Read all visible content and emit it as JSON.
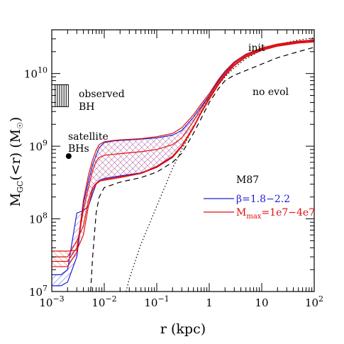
{
  "chart_data": {
    "type": "line",
    "xscale": "log",
    "yscale": "log",
    "xlim": [
      0.001,
      100
    ],
    "ylim": [
      10000000.0,
      40000000000.0
    ],
    "xlabel": "r (kpc)",
    "ylabel_main": "M",
    "ylabel_sub": "GC",
    "ylabel_rest": "(<r)  (M",
    "ylabel_unit_sub": "☉",
    "ylabel_close": ")",
    "x_ticks": [
      {
        "value": 0.001,
        "base": "10",
        "exp": "−3"
      },
      {
        "value": 0.01,
        "base": "10",
        "exp": "−2"
      },
      {
        "value": 0.1,
        "base": "10",
        "exp": "−1"
      },
      {
        "value": 1,
        "base": "1",
        "exp": ""
      },
      {
        "value": 10,
        "base": "10",
        "exp": ""
      },
      {
        "value": 100,
        "base": "10",
        "exp": "2"
      }
    ],
    "y_ticks": [
      {
        "value": 10000000.0,
        "base": "10",
        "exp": "7"
      },
      {
        "value": 100000000.0,
        "base": "10",
        "exp": "8"
      },
      {
        "value": 1000000000.0,
        "base": "10",
        "exp": "9"
      },
      {
        "value": 10000000000.0,
        "base": "10",
        "exp": "10"
      }
    ],
    "annotations": {
      "init": "init",
      "no_evol": "no evol",
      "observed_line1": "observed",
      "observed_line2": "BH",
      "satellite_line1": "satellite",
      "satellite_line2": "BHs"
    },
    "legend": {
      "title": "M87",
      "entries": [
        {
          "label_main": "β=1.8−2.2",
          "color": "#1f1fd6"
        },
        {
          "label_main": "M",
          "label_sub": "max",
          "label_rest": "=1e7−4e7",
          "color": "#e01010"
        }
      ]
    },
    "observed_bh_range": {
      "x_from": 0.001,
      "x_to": 0.0021,
      "y_from": 3500000000.0,
      "y_to": 7000000000.0
    },
    "satellite_bh_point": {
      "x": 0.0021,
      "y": 730000000.0
    },
    "series": [
      {
        "style": "dotted",
        "color": "#000000",
        "points": [
          [
            0.026,
            10000000.0
          ],
          [
            0.03,
            15000000.0
          ],
          [
            0.04,
            28000000.0
          ],
          [
            0.05,
            45000000.0
          ],
          [
            0.07,
            80000000.0
          ],
          [
            0.1,
            150000000.0
          ],
          [
            0.15,
            300000000.0
          ],
          [
            0.2,
            500000000.0
          ],
          [
            0.3,
            900000000.0
          ],
          [
            0.5,
            1800000000.0
          ],
          [
            0.7,
            3000000000.0
          ],
          [
            1,
            4700000000.0
          ],
          [
            1.5,
            7000000000.0
          ],
          [
            2,
            9000000000.0
          ],
          [
            3,
            12000000000.0
          ],
          [
            5,
            16000000000.0
          ],
          [
            10,
            21000000000.0
          ],
          [
            20,
            25000000000.0
          ],
          [
            50,
            29000000000.0
          ],
          [
            100,
            31000000000.0
          ]
        ]
      },
      {
        "style": "dashed",
        "color": "#000000",
        "points": [
          [
            0.0055,
            10000000.0
          ],
          [
            0.006,
            30000000.0
          ],
          [
            0.007,
            120000000.0
          ],
          [
            0.008,
            200000000.0
          ],
          [
            0.01,
            270000000.0
          ],
          [
            0.02,
            320000000.0
          ],
          [
            0.05,
            370000000.0
          ],
          [
            0.1,
            440000000.0
          ],
          [
            0.2,
            600000000.0
          ],
          [
            0.3,
            800000000.0
          ],
          [
            0.5,
            1500000000.0
          ],
          [
            0.7,
            2400000000.0
          ],
          [
            1,
            4000000000.0
          ],
          [
            1.5,
            6200000000.0
          ],
          [
            2,
            8000000000.0
          ],
          [
            3,
            9500000000.0
          ],
          [
            5,
            11000000000.0
          ],
          [
            10,
            13500000000.0
          ],
          [
            20,
            16500000000.0
          ],
          [
            50,
            20000000000.0
          ],
          [
            100,
            23000000000.0
          ]
        ]
      },
      {
        "style": "solid",
        "color": "#1f1fd6",
        "points": [
          [
            0.001,
            12000000.0
          ],
          [
            0.0015,
            12000000.0
          ],
          [
            0.002,
            13500000.0
          ],
          [
            0.003,
            30000000.0
          ],
          [
            0.004,
            160000000.0
          ],
          [
            0.005,
            330000000.0
          ],
          [
            0.006,
            550000000.0
          ],
          [
            0.007,
            750000000.0
          ],
          [
            0.008,
            950000000.0
          ],
          [
            0.01,
            1120000000.0
          ],
          [
            0.015,
            1180000000.0
          ],
          [
            0.02,
            1200000000.0
          ],
          [
            0.05,
            1250000000.0
          ],
          [
            0.1,
            1300000000.0
          ],
          [
            0.2,
            1420000000.0
          ],
          [
            0.3,
            1650000000.0
          ],
          [
            0.5,
            2500000000.0
          ],
          [
            0.7,
            3500000000.0
          ],
          [
            1,
            5000000000.0
          ],
          [
            1.5,
            8000000000.0
          ],
          [
            2,
            10500000000.0
          ],
          [
            3,
            14000000000.0
          ],
          [
            5,
            18000000000.0
          ],
          [
            10,
            22000000000.0
          ],
          [
            20,
            25000000000.0
          ],
          [
            50,
            27500000000.0
          ],
          [
            100,
            28500000000.0
          ]
        ]
      },
      {
        "style": "solid",
        "color": "#1f1fd6",
        "points": [
          [
            0.001,
            17000000.0
          ],
          [
            0.0015,
            17000000.0
          ],
          [
            0.002,
            20000000.0
          ],
          [
            0.003,
            120000000.0
          ],
          [
            0.004,
            130000000.0
          ],
          [
            0.005,
            150000000.0
          ],
          [
            0.006,
            220000000.0
          ],
          [
            0.007,
            300000000.0
          ],
          [
            0.008,
            340000000.0
          ],
          [
            0.01,
            360000000.0
          ],
          [
            0.02,
            390000000.0
          ],
          [
            0.05,
            430000000.0
          ],
          [
            0.1,
            520000000.0
          ],
          [
            0.2,
            720000000.0
          ],
          [
            0.3,
            1000000000.0
          ],
          [
            0.5,
            1800000000.0
          ],
          [
            0.7,
            2900000000.0
          ],
          [
            1,
            4500000000.0
          ],
          [
            1.5,
            7200000000.0
          ],
          [
            2,
            9500000000.0
          ],
          [
            3,
            13000000000.0
          ],
          [
            5,
            17000000000.0
          ],
          [
            10,
            21000000000.0
          ],
          [
            20,
            24000000000.0
          ],
          [
            50,
            26500000000.0
          ],
          [
            100,
            27500000000.0
          ]
        ]
      },
      {
        "style": "solid",
        "color": "#e01010",
        "points": [
          [
            0.001,
            22000000.0
          ],
          [
            0.002,
            22000000.0
          ],
          [
            0.003,
            35000000.0
          ],
          [
            0.004,
            180000000.0
          ],
          [
            0.005,
            400000000.0
          ],
          [
            0.006,
            650000000.0
          ],
          [
            0.007,
            880000000.0
          ],
          [
            0.008,
            1050000000.0
          ],
          [
            0.01,
            1150000000.0
          ],
          [
            0.015,
            1200000000.0
          ],
          [
            0.02,
            1220000000.0
          ],
          [
            0.05,
            1270000000.0
          ],
          [
            0.1,
            1350000000.0
          ],
          [
            0.2,
            1500000000.0
          ],
          [
            0.3,
            1800000000.0
          ],
          [
            0.5,
            2700000000.0
          ],
          [
            0.7,
            3800000000.0
          ],
          [
            1,
            5300000000.0
          ],
          [
            1.5,
            8300000000.0
          ],
          [
            2,
            10800000000.0
          ],
          [
            3,
            14500000000.0
          ],
          [
            5,
            18500000000.0
          ],
          [
            10,
            22500000000.0
          ],
          [
            20,
            25500000000.0
          ],
          [
            50,
            28000000000.0
          ],
          [
            100,
            29000000000.0
          ]
        ]
      },
      {
        "style": "solid",
        "color": "#e01010",
        "points": [
          [
            0.001,
            26000000.0
          ],
          [
            0.002,
            26000000.0
          ],
          [
            0.003,
            40000000.0
          ],
          [
            0.004,
            130000000.0
          ],
          [
            0.005,
            270000000.0
          ],
          [
            0.006,
            460000000.0
          ],
          [
            0.007,
            620000000.0
          ],
          [
            0.008,
            700000000.0
          ],
          [
            0.01,
            750000000.0
          ],
          [
            0.02,
            790000000.0
          ],
          [
            0.05,
            840000000.0
          ],
          [
            0.1,
            900000000.0
          ],
          [
            0.2,
            1050000000.0
          ],
          [
            0.3,
            1300000000.0
          ],
          [
            0.5,
            2200000000.0
          ],
          [
            0.7,
            3300000000.0
          ],
          [
            1,
            4900000000.0
          ],
          [
            1.5,
            7700000000.0
          ],
          [
            2,
            10000000000.0
          ],
          [
            3,
            13800000000.0
          ],
          [
            5,
            17800000000.0
          ],
          [
            10,
            21800000000.0
          ],
          [
            20,
            24800000000.0
          ],
          [
            50,
            27200000000.0
          ],
          [
            100,
            28200000000.0
          ]
        ]
      },
      {
        "style": "solid",
        "color": "#e01010",
        "points": [
          [
            0.001,
            30000000.0
          ],
          [
            0.002,
            30000000.0
          ],
          [
            0.003,
            50000000.0
          ],
          [
            0.004,
            80000000.0
          ],
          [
            0.005,
            180000000.0
          ],
          [
            0.006,
            270000000.0
          ],
          [
            0.007,
            310000000.0
          ],
          [
            0.008,
            330000000.0
          ],
          [
            0.01,
            340000000.0
          ],
          [
            0.02,
            370000000.0
          ],
          [
            0.05,
            420000000.0
          ],
          [
            0.1,
            510000000.0
          ],
          [
            0.2,
            700000000.0
          ],
          [
            0.3,
            980000000.0
          ],
          [
            0.5,
            1780000000.0
          ],
          [
            0.7,
            2850000000.0
          ],
          [
            1,
            4400000000.0
          ],
          [
            1.5,
            7000000000.0
          ],
          [
            2,
            9300000000.0
          ],
          [
            3,
            12800000000.0
          ],
          [
            5,
            16800000000.0
          ],
          [
            10,
            20800000000.0
          ],
          [
            20,
            23800000000.0
          ],
          [
            50,
            26200000000.0
          ],
          [
            100,
            27200000000.0
          ]
        ]
      },
      {
        "style": "solid",
        "color": "#e01010",
        "points": [
          [
            0.001,
            36000000.0
          ],
          [
            0.002,
            36000000.0
          ],
          [
            0.003,
            37000000.0
          ],
          [
            0.004,
            60000000.0
          ],
          [
            0.005,
            150000000.0
          ],
          [
            0.006,
            250000000.0
          ],
          [
            0.007,
            300000000.0
          ],
          [
            0.008,
            325000000.0
          ],
          [
            0.01,
            350000000.0
          ],
          [
            0.02,
            380000000.0
          ],
          [
            0.05,
            425000000.0
          ],
          [
            0.1,
            530000000.0
          ],
          [
            0.2,
            730000000.0
          ],
          [
            0.3,
            1020000000.0
          ],
          [
            0.5,
            1850000000.0
          ],
          [
            0.7,
            2950000000.0
          ],
          [
            1,
            4600000000.0
          ],
          [
            1.5,
            7300000000.0
          ],
          [
            2,
            9600000000.0
          ],
          [
            3,
            13200000000.0
          ],
          [
            5,
            17200000000.0
          ],
          [
            10,
            21200000000.0
          ],
          [
            20,
            24200000000.0
          ],
          [
            50,
            26600000000.0
          ],
          [
            100,
            27600000000.0
          ]
        ]
      }
    ]
  }
}
